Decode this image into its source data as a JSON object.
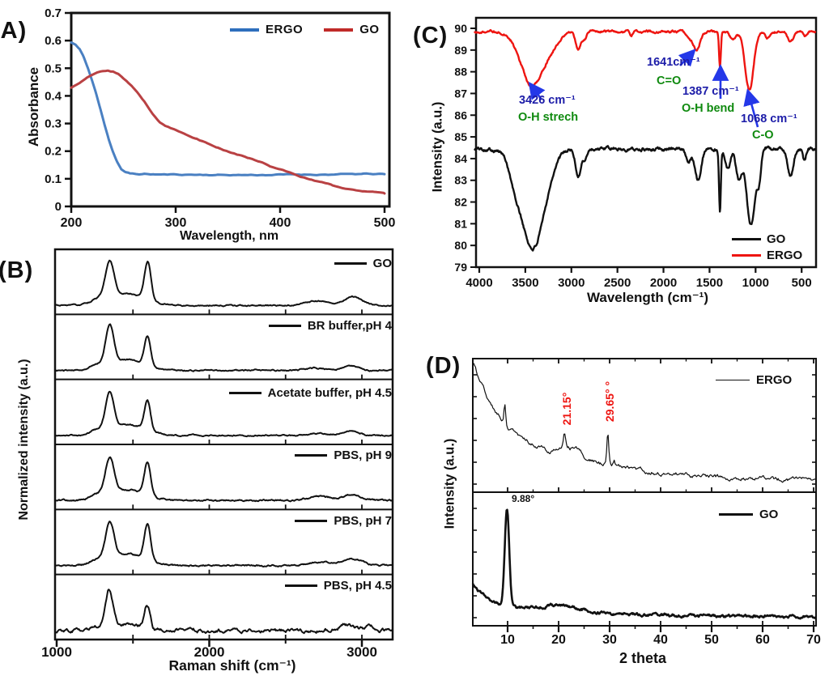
{
  "colors": {
    "frame": "#111111",
    "annotation_value": "#1c1ca8",
    "annotation_assignment": "#0f8a0f",
    "arrow": "#2438e8",
    "xrd_peak_label": "#ee1511"
  },
  "panels": {
    "A": {
      "tag": "(A)",
      "xlabel": "Wavelength, nm",
      "ylabel": "Absorbance",
      "legend": [
        {
          "label": "ERGO",
          "color": "#2e6fbd"
        },
        {
          "label": "GO",
          "color": "#c02a28"
        }
      ],
      "chart_data": {
        "type": "line",
        "xlabel": "Wavelength, nm",
        "ylabel": "Absorbance",
        "xlim": [
          200,
          500
        ],
        "ylim": [
          0,
          0.7
        ],
        "xticks": [
          "200",
          "300",
          "400",
          "500"
        ],
        "yticks": [
          "0",
          "0.1",
          "0.2",
          "0.3",
          "0.4",
          "0.5",
          "0.6",
          "0.7"
        ],
        "series": [
          {
            "name": "ERGO",
            "color": "#4a80c2",
            "points": [
              [
                200,
                0.593
              ],
              [
                204,
                0.585
              ],
              [
                208,
                0.568
              ],
              [
                212,
                0.54
              ],
              [
                216,
                0.5
              ],
              [
                220,
                0.455
              ],
              [
                224,
                0.405
              ],
              [
                228,
                0.35
              ],
              [
                232,
                0.295
              ],
              [
                236,
                0.243
              ],
              [
                240,
                0.198
              ],
              [
                244,
                0.162
              ],
              [
                248,
                0.135
              ],
              [
                252,
                0.123
              ],
              [
                256,
                0.119
              ],
              [
                262,
                0.117
              ],
              [
                270,
                0.117
              ],
              [
                280,
                0.116
              ],
              [
                300,
                0.115
              ],
              [
                320,
                0.115
              ],
              [
                340,
                0.114
              ],
              [
                360,
                0.114
              ],
              [
                380,
                0.114
              ],
              [
                400,
                0.115
              ],
              [
                420,
                0.115
              ],
              [
                440,
                0.116
              ],
              [
                460,
                0.116
              ],
              [
                480,
                0.117
              ],
              [
                500,
                0.117
              ]
            ]
          },
          {
            "name": "GO",
            "color": "#b94143",
            "points": [
              [
                200,
                0.43
              ],
              [
                205,
                0.44
              ],
              [
                210,
                0.452
              ],
              [
                215,
                0.465
              ],
              [
                220,
                0.477
              ],
              [
                225,
                0.486
              ],
              [
                230,
                0.491
              ],
              [
                235,
                0.492
              ],
              [
                240,
                0.488
              ],
              [
                245,
                0.478
              ],
              [
                250,
                0.463
              ],
              [
                255,
                0.446
              ],
              [
                260,
                0.427
              ],
              [
                265,
                0.405
              ],
              [
                270,
                0.38
              ],
              [
                275,
                0.352
              ],
              [
                280,
                0.325
              ],
              [
                285,
                0.303
              ],
              [
                290,
                0.29
              ],
              [
                295,
                0.282
              ],
              [
                300,
                0.275
              ],
              [
                305,
                0.268
              ],
              [
                310,
                0.259
              ],
              [
                320,
                0.243
              ],
              [
                330,
                0.228
              ],
              [
                340,
                0.214
              ],
              [
                350,
                0.2
              ],
              [
                360,
                0.187
              ],
              [
                370,
                0.173
              ],
              [
                380,
                0.159
              ],
              [
                390,
                0.146
              ],
              [
                400,
                0.132
              ],
              [
                410,
                0.12
              ],
              [
                420,
                0.108
              ],
              [
                430,
                0.097
              ],
              [
                440,
                0.087
              ],
              [
                450,
                0.077
              ],
              [
                460,
                0.069
              ],
              [
                470,
                0.062
              ],
              [
                480,
                0.056
              ],
              [
                490,
                0.051
              ],
              [
                500,
                0.047
              ]
            ]
          }
        ]
      }
    },
    "B": {
      "tag": "(B)",
      "xlabel": "Raman shift (cm⁻¹)",
      "ylabel": "Normalized intensity (a.u.)",
      "chart_data": {
        "type": "line-stack",
        "xlim": [
          990,
          3200
        ],
        "xticks": [
          "1000",
          "2000",
          "3000"
        ],
        "xticks_minor": [
          1500,
          2500
        ],
        "separator_ticks": [
          1500,
          2000,
          2500,
          3000
        ],
        "series": [
          {
            "name": "GO",
            "d_band": [
              1348,
              40,
              0.8
            ],
            "g_band": [
              1597,
              30,
              0.82
            ],
            "humps": [
              [
                1270,
                70,
                0.1
              ],
              [
                1470,
                160,
                0.26
              ],
              [
                2700,
                100,
                0.1
              ],
              [
                2940,
                80,
                0.2
              ]
            ],
            "noise": 0.01
          },
          {
            "name": "BR buffer,pH 4",
            "d_band": [
              1348,
              38,
              0.85
            ],
            "g_band": [
              1595,
              28,
              0.63
            ],
            "humps": [
              [
                1270,
                70,
                0.1
              ],
              [
                1470,
                150,
                0.24
              ],
              [
                2700,
                90,
                0.05
              ],
              [
                2930,
                70,
                0.1
              ]
            ],
            "noise": 0.01
          },
          {
            "name": "Acetate buffer, pH 4.5",
            "d_band": [
              1348,
              38,
              0.82
            ],
            "g_band": [
              1595,
              28,
              0.66
            ],
            "humps": [
              [
                1270,
                70,
                0.1
              ],
              [
                1470,
                150,
                0.24
              ],
              [
                2720,
                90,
                0.05
              ],
              [
                2930,
                70,
                0.1
              ]
            ],
            "noise": 0.01
          },
          {
            "name": "PBS, pH 9",
            "d_band": [
              1348,
              40,
              0.8
            ],
            "g_band": [
              1595,
              29,
              0.72
            ],
            "humps": [
              [
                1270,
                70,
                0.1
              ],
              [
                1470,
                155,
                0.24
              ],
              [
                2720,
                110,
                0.09
              ],
              [
                2940,
                85,
                0.13
              ]
            ],
            "noise": 0.012
          },
          {
            "name": "PBS, pH 7",
            "d_band": [
              1348,
              40,
              0.78
            ],
            "g_band": [
              1595,
              29,
              0.78
            ],
            "humps": [
              [
                1270,
                70,
                0.1
              ],
              [
                1470,
                155,
                0.25
              ],
              [
                2730,
                110,
                0.07
              ],
              [
                2950,
                85,
                0.14
              ]
            ],
            "noise": 0.012
          },
          {
            "name": "PBS, pH 4.5",
            "d_band": [
              1345,
              34,
              0.8
            ],
            "g_band": [
              1593,
              27,
              0.52
            ],
            "humps": [
              [
                1270,
                60,
                0.08
              ],
              [
                1450,
                140,
                0.13
              ],
              [
                2900,
                80,
                0.13
              ],
              [
                3060,
                45,
                0.07
              ]
            ],
            "noise": 0.028
          }
        ]
      }
    },
    "C": {
      "tag": "(C)",
      "xlabel": "Wavelength (cm⁻¹)",
      "ylabel": "Intensity (a.u.)",
      "legend": [
        {
          "label": "GO",
          "color": "#111111"
        },
        {
          "label": "ERGO",
          "color": "#ee1511"
        }
      ],
      "annotations": [
        {
          "value": "3426 cm⁻¹",
          "assignment": "O-H strech"
        },
        {
          "value": "1641cm⁻¹",
          "assignment": "C=O"
        },
        {
          "value": "1387 cm⁻¹",
          "assignment": "O-H bend"
        },
        {
          "value": "1068 cm⁻¹",
          "assignment": "C-O"
        }
      ],
      "chart_data": {
        "type": "line",
        "xlim": [
          4050,
          350
        ],
        "ylim": [
          79,
          90
        ],
        "x_reversed": true,
        "xticks": [
          "4000",
          "3500",
          "3000",
          "2500",
          "2000",
          "1500",
          "1000",
          "500"
        ],
        "yticks": [
          "79",
          "80",
          "81",
          "82",
          "83",
          "84",
          "85",
          "86",
          "87",
          "88",
          "89",
          "90"
        ],
        "series": [
          {
            "name": "GO",
            "color": "#111111",
            "baseline": 84.45,
            "noise": 0.05,
            "dips": [
              [
                3420,
                190,
                4.6
              ],
              [
                3620,
                70,
                0.6
              ],
              [
                2925,
                42,
                1.25
              ],
              [
                2850,
                30,
                0.5
              ],
              [
                1730,
                35,
                0.5
              ],
              [
                1627,
                48,
                1.45
              ],
              [
                1387,
                14,
                2.85
              ],
              [
                1300,
                40,
                0.9
              ],
              [
                1180,
                45,
                1.4
              ],
              [
                1050,
                65,
                3.5
              ],
              [
                960,
                30,
                1.2
              ],
              [
                620,
                45,
                1.25
              ],
              [
                470,
                25,
                0.55
              ]
            ]
          },
          {
            "name": "ERGO",
            "color": "#ee1511",
            "baseline": 89.85,
            "noise": 0.03,
            "dips": [
              [
                3426,
                170,
                2.5
              ],
              [
                3200,
                120,
                0.5
              ],
              [
                2925,
                40,
                0.85
              ],
              [
                2855,
                30,
                0.35
              ],
              [
                2350,
                20,
                0.18
              ],
              [
                1720,
                40,
                0.3
              ],
              [
                1641,
                50,
                0.85
              ],
              [
                1387,
                14,
                1.6
              ],
              [
                1250,
                45,
                0.35
              ],
              [
                1068,
                65,
                2.7
              ],
              [
                870,
                30,
                0.3
              ],
              [
                620,
                45,
                0.5
              ],
              [
                460,
                25,
                0.25
              ]
            ]
          }
        ]
      }
    },
    "D": {
      "tag": "(D)",
      "xlabel": "2 theta",
      "ylabel": "Intensity (a.u.)",
      "chart_data": {
        "type": "line-stack",
        "xlim": [
          3.2,
          70.5
        ],
        "xticks": [
          "10",
          "20",
          "30",
          "40",
          "50",
          "60",
          "70"
        ],
        "subplots": [
          {
            "name": "ERGO",
            "annotations": [
              "21.15°",
              "29.65° °"
            ],
            "curve": {
              "base": 0.04,
              "decays": [
                [
                  0.5,
                  4.2
                ],
                [
                  0.52,
                  20
                ]
              ],
              "peaks": [
                [
                  9.45,
                  0.22,
                  0.17
                ],
                [
                  21.15,
                  0.3,
                  0.12
                ],
                [
                  22.7,
                  2.8,
                  0.08
                ],
                [
                  29.65,
                  0.26,
                  0.24
                ],
                [
                  30.9,
                  0.3,
                  0.04
                ]
              ],
              "noise": 0.013
            }
          },
          {
            "name": "GO",
            "annotations": [
              "9.88°"
            ],
            "curve": {
              "base": 0.03,
              "decays": [
                [
                  0.2,
                  3.5
                ],
                [
                  0.08,
                  25
                ]
              ],
              "peaks": [
                [
                  9.88,
                  0.62,
                  0.8
                ],
                [
                  20,
                  5.5,
                  0.055
                ]
              ],
              "noise": 0.008
            }
          }
        ]
      }
    }
  }
}
